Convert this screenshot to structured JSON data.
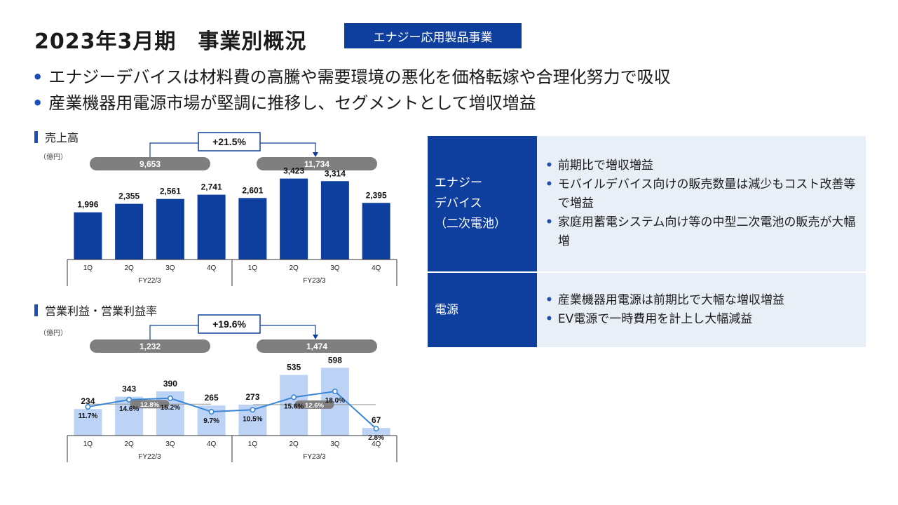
{
  "title": "2023年3月期　事業別概況",
  "badge": "エナジー応用製品事業",
  "bullets": [
    "エナジーデバイスは材料費の高騰や需要環境の悪化を価格転嫁や合理化努力で吸収",
    "産業機器用電源市場が堅調に推移し、セグメントとして増収増益"
  ],
  "sales_label": "売上高",
  "profit_label": "営業利益・営業利益率",
  "unit": "（億円）",
  "colors": {
    "accent": "#0e3f9e",
    "bar_sales": "#0e3f9e",
    "bar_profit": "#bcd3f6",
    "line": "#3a86d4",
    "pill": "#7f7f7f",
    "panel": "#e9eff7"
  },
  "chart_data": [
    {
      "type": "bar",
      "title": "売上高",
      "unit": "（億円）",
      "categories": [
        "1Q",
        "2Q",
        "3Q",
        "4Q",
        "1Q",
        "2Q",
        "3Q",
        "4Q"
      ],
      "groups": [
        {
          "name": "FY22/3",
          "span": [
            0,
            4
          ]
        },
        {
          "name": "FY23/3",
          "span": [
            4,
            8
          ]
        }
      ],
      "values": [
        1996,
        2355,
        2561,
        2741,
        2601,
        3423,
        3314,
        2395
      ],
      "value_labels": [
        "1,996",
        "2,355",
        "2,561",
        "2,741",
        "2,601",
        "3,423",
        "3,314",
        "2,395"
      ],
      "totals": [
        "9,653",
        "11,734"
      ],
      "growth": "+21.5%",
      "ylim": [
        0,
        3500
      ]
    },
    {
      "type": "bar",
      "title": "営業利益・営業利益率",
      "unit": "（億円）",
      "categories": [
        "1Q",
        "2Q",
        "3Q",
        "4Q",
        "1Q",
        "2Q",
        "3Q",
        "4Q"
      ],
      "groups": [
        {
          "name": "FY22/3",
          "span": [
            0,
            4
          ]
        },
        {
          "name": "FY23/3",
          "span": [
            4,
            8
          ]
        }
      ],
      "values": [
        234,
        343,
        390,
        265,
        273,
        535,
        598,
        67
      ],
      "value_labels": [
        "234",
        "343",
        "390",
        "265",
        "273",
        "535",
        "598",
        "67"
      ],
      "margin": [
        11.7,
        14.6,
        15.2,
        9.7,
        10.5,
        15.6,
        18.0,
        2.8
      ],
      "margin_labels": [
        "11.7%",
        "14.6%",
        "15.2%",
        "9.7%",
        "10.5%",
        "15.6%",
        "18.0%",
        "2.8%"
      ],
      "avg_margin": [
        "12.8%",
        "12.6%"
      ],
      "avg_margin_values": [
        12.8,
        12.6
      ],
      "totals": [
        "1,232",
        "1,474"
      ],
      "growth": "+19.6%",
      "ylim": [
        0,
        650
      ],
      "margin_lim": [
        0,
        40
      ]
    }
  ],
  "segments": [
    {
      "head": [
        "エナジー",
        "デバイス",
        "（二次電池）"
      ],
      "items": [
        "前期比で増収増益",
        "モバイルデバイス向けの販売数量は減少もコスト改善等で増益",
        "家庭用蓄電システム向け等の中型二次電池の販売が大幅増"
      ]
    },
    {
      "head": [
        "電源"
      ],
      "items": [
        "産業機器用電源は前期比で大幅な増収増益",
        "EV電源で一時費用を計上し大幅減益"
      ]
    }
  ]
}
